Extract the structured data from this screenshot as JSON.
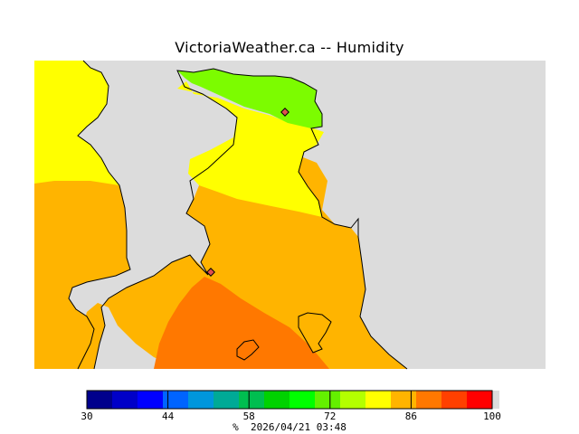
{
  "title": "VictoriaWeather.ca -- Humidity",
  "footer": {
    "unit": "%",
    "timestamp": "2026/04/21 03:48"
  },
  "colors": {
    "land_nodata": "#dcdcdc",
    "coastline": "#000000",
    "band_dark_orange": "#ff7800",
    "band_orange": "#ffb400",
    "band_yellow": "#ffff00",
    "band_green": "#7cfc00",
    "band_green2": "#64f000",
    "station_marker": "#e05050"
  },
  "colorbar": {
    "min": 30,
    "max": 100,
    "tick_labels": [
      "30",
      "44",
      "58",
      "72",
      "86",
      "100"
    ],
    "tick_values": [
      30,
      44,
      58,
      72,
      86,
      100
    ],
    "colors": [
      "#00008c",
      "#0000c8",
      "#0000ff",
      "#0064ff",
      "#0096dc",
      "#00aa96",
      "#00be50",
      "#00d200",
      "#00ff00",
      "#64f000",
      "#b4ff00",
      "#ffff00",
      "#ffb400",
      "#ff7800",
      "#ff4000",
      "#ff0000"
    ],
    "end_color": "#dcdcdc"
  }
}
